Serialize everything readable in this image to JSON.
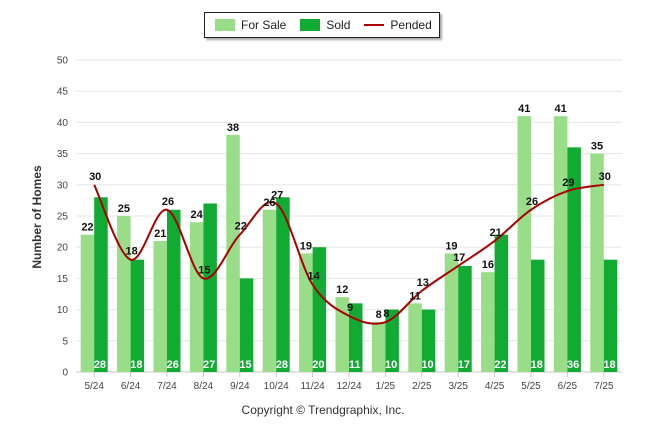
{
  "legend": {
    "for_sale": "For Sale",
    "sold": "Sold",
    "pended": "Pended"
  },
  "copyright": "Copyright © Trendgraphix, Inc.",
  "colors": {
    "for_sale": "#99dd88",
    "sold": "#11aa33",
    "pended": "#aa0000",
    "grid": "#e6e6e6"
  },
  "chart_data": {
    "type": "bar",
    "ylabel": "Number of Homes",
    "xlabel": "",
    "ylim": [
      0,
      50
    ],
    "yticks": [
      0,
      5,
      10,
      15,
      20,
      25,
      30,
      35,
      40,
      45,
      50
    ],
    "grid": true,
    "legend_position": "top-center",
    "categories": [
      "5/24",
      "6/24",
      "7/24",
      "8/24",
      "9/24",
      "10/24",
      "11/24",
      "12/24",
      "1/25",
      "2/25",
      "3/25",
      "4/25",
      "5/25",
      "6/25",
      "7/25"
    ],
    "series": [
      {
        "name": "For Sale",
        "type": "bar",
        "values": [
          22,
          25,
          21,
          24,
          38,
          26,
          19,
          12,
          8,
          11,
          19,
          16,
          41,
          41,
          35
        ]
      },
      {
        "name": "Sold",
        "type": "bar",
        "values": [
          28,
          18,
          26,
          27,
          15,
          28,
          20,
          11,
          10,
          10,
          17,
          22,
          18,
          36,
          18
        ]
      },
      {
        "name": "Pended",
        "type": "line",
        "values": [
          30,
          18,
          26,
          15,
          22,
          27,
          14,
          9,
          8,
          13,
          17,
          21,
          26,
          29,
          30
        ]
      }
    ]
  }
}
